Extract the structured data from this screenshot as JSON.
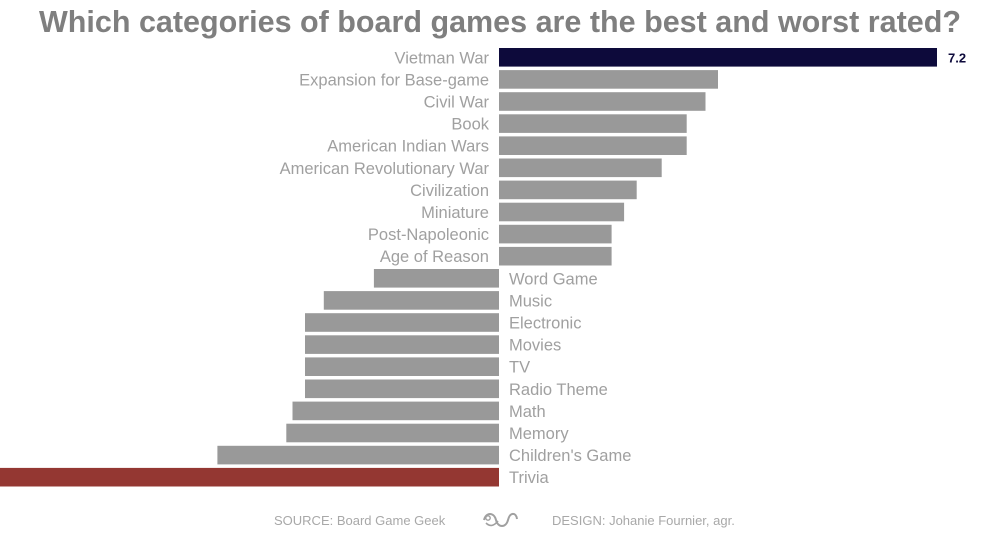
{
  "chart_data": {
    "type": "bar",
    "title": "Which categories of board games are the best and worst rated?",
    "categories": [
      "Vietman War",
      "Expansion for Base-game",
      "Civil War",
      "Book",
      "American Indian Wars",
      "American Revolutionary War",
      "Civilization",
      "Miniature",
      "Post-Napoleonic",
      "Age of Reason",
      "Word Game",
      "Music",
      "Electronic",
      "Movies",
      "TV",
      "Radio Theme",
      "Math",
      "Memory",
      "Children's Game",
      "Trivia"
    ],
    "values": [
      7.2,
      6.85,
      6.83,
      6.8,
      6.8,
      6.76,
      6.72,
      6.7,
      6.68,
      6.68,
      6.3,
      6.22,
      6.19,
      6.19,
      6.19,
      6.19,
      6.17,
      6.16,
      6.05,
      5.6
    ],
    "baseline": 6.5,
    "xlim": [
      5.6,
      7.2
    ],
    "data_labels": {
      "max": "7.2",
      "min": "5.6"
    },
    "colors": {
      "default": "#999999",
      "max": "#0d0a3b",
      "min": "#943732"
    },
    "grid": false,
    "legend": "none"
  },
  "footer": {
    "source": "SOURCE: Board Game Geek",
    "design": "DESIGN: Johanie Fournier, agr."
  },
  "icons": {
    "logo": "ornament-logo-icon"
  }
}
